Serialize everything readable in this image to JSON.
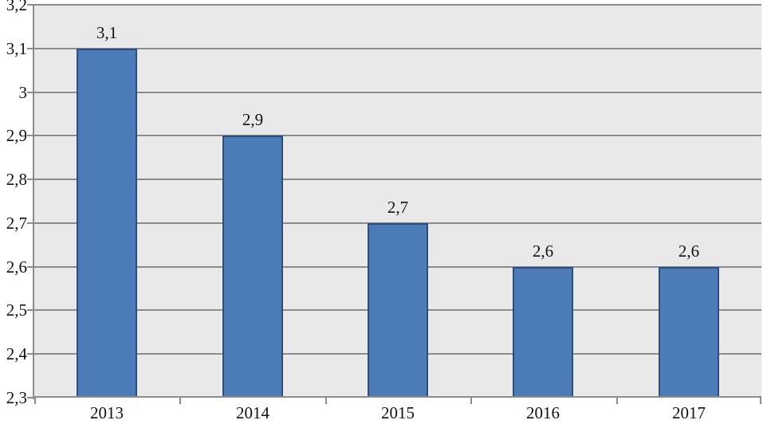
{
  "chart_data": {
    "type": "bar",
    "title": "",
    "xlabel": "",
    "ylabel": "",
    "categories": [
      "2013",
      "2014",
      "2015",
      "2016",
      "2017"
    ],
    "values": [
      3.1,
      2.9,
      2.7,
      2.6,
      2.6
    ],
    "data_labels": [
      "3,1",
      "2,9",
      "2,7",
      "2,6",
      "2,6"
    ],
    "ylim": [
      2.3,
      3.2
    ],
    "ytick_step": 0.1,
    "ytick_labels_top_to_bottom": [
      "3,2",
      "3,1",
      "3",
      "2,9",
      "2,8",
      "2,7",
      "2,6",
      "2,5",
      "2,4",
      "2,3"
    ],
    "decimal_separator": ",",
    "grid": true,
    "legend": "none",
    "colors": {
      "bar_fill": "#4B7CB8",
      "bar_border": "#2C4D7E",
      "plot_background": "#E9E9E9",
      "gridline": "#8C8C8C",
      "axis_line": "#8C8C8C",
      "label_text": "#111111",
      "page_background": "#FFFFFF"
    }
  }
}
